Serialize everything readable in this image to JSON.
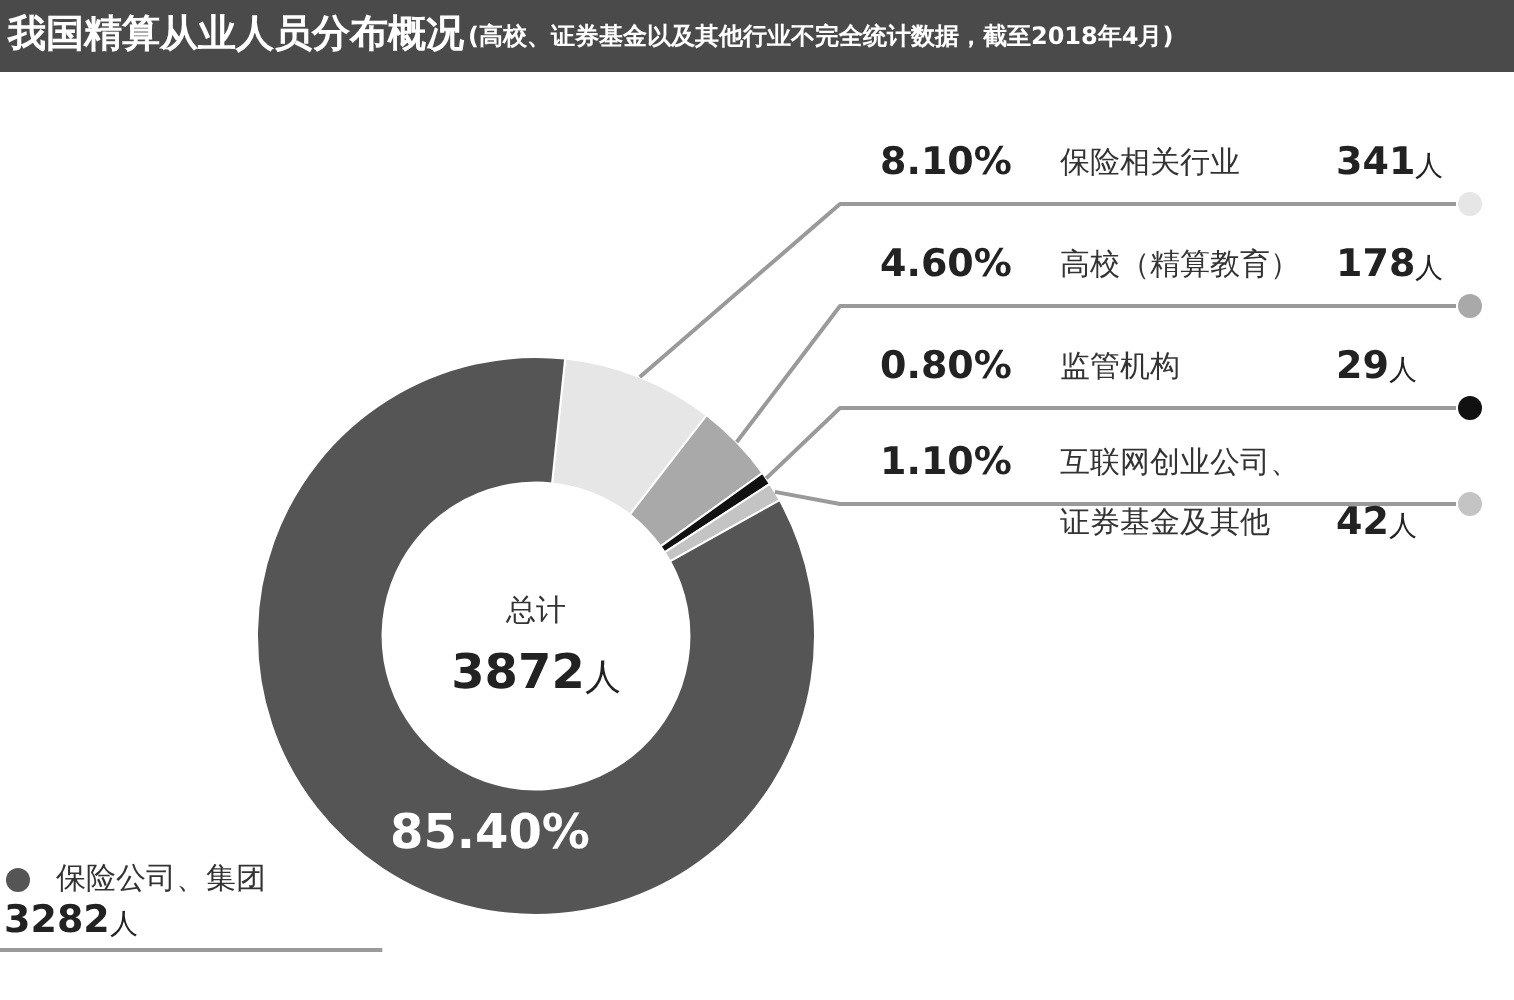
{
  "chart_data": {
    "type": "donut",
    "title": "我国精算从业人员分布概况",
    "subtitle": "(高校、证券基金以及其他行业不完全统计数据，截至2018年4月)",
    "categories": [
      "保险相关行业",
      "高校（精算教育）",
      "监管机构",
      "互联网创业公司、证券基金及其他",
      "保险公司、集团"
    ],
    "values": [
      341,
      178,
      29,
      42,
      3282
    ],
    "colors": [
      "#e6e6e6",
      "#a9a9a9",
      "#111111",
      "#c4c4c4",
      "#555555"
    ],
    "value_labels": [
      "341人",
      "178人",
      "29人",
      "42人",
      "3282人"
    ],
    "annotations": [
      "8.10%",
      "4.60%",
      "0.80%",
      "1.10%",
      "85.40%",
      "总计",
      "3872人"
    ]
  }
}
